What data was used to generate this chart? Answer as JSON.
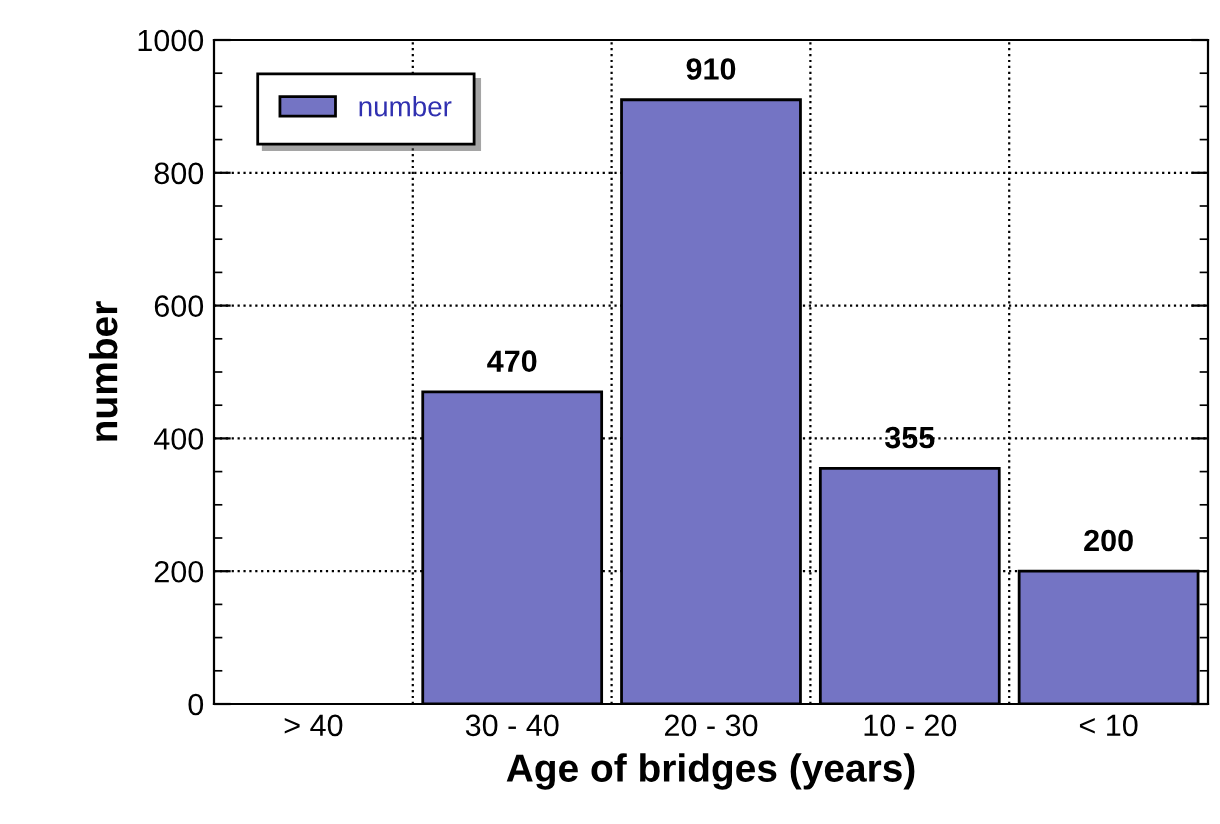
{
  "chart_data": {
    "type": "bar",
    "xlabel": "Age of bridges (years)",
    "ylabel": "number",
    "categories": [
      "> 40",
      "30 - 40",
      "20 - 30",
      "10 - 20",
      "< 10"
    ],
    "series": [
      {
        "name": "number",
        "color": "#7474c4",
        "values": [
          null,
          470,
          910,
          355,
          200
        ],
        "value_labels": [
          null,
          "470",
          "910",
          "355",
          "200"
        ]
      }
    ],
    "ylim": [
      0,
      1000
    ],
    "yticks": [
      0,
      200,
      400,
      600,
      800,
      1000
    ],
    "grid": true,
    "legend": "top left"
  }
}
